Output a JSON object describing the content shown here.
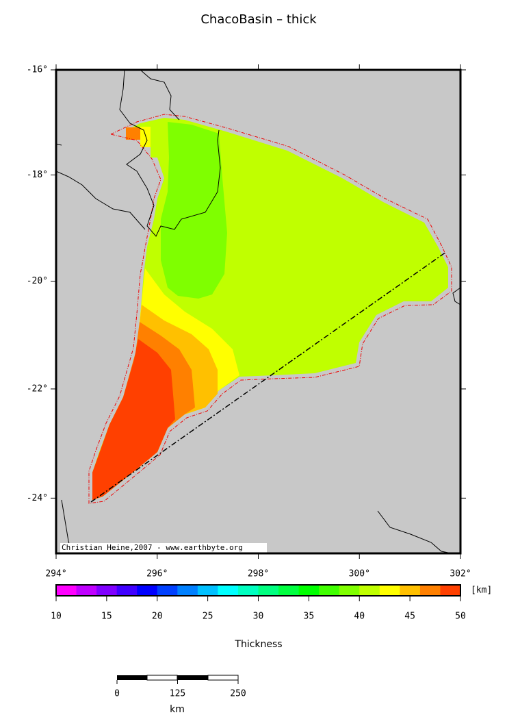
{
  "title": "ChacoBasin – thick",
  "map": {
    "lat_ticks": [
      {
        "value": -16,
        "label": "-16°"
      },
      {
        "value": -18,
        "label": "-18°"
      },
      {
        "value": -20,
        "label": "-20°"
      },
      {
        "value": -22,
        "label": "-22°"
      },
      {
        "value": -24,
        "label": "-24°"
      }
    ],
    "lat_range": [
      -16,
      -25
    ],
    "lon_ticks": [
      {
        "value": 294,
        "label": "294°"
      },
      {
        "value": 296,
        "label": "296°"
      },
      {
        "value": 298,
        "label": "298°"
      },
      {
        "value": 300,
        "label": "300°"
      },
      {
        "value": 302,
        "label": "302°"
      }
    ],
    "lon_range": [
      294,
      302
    ],
    "credit": "Christian Heine,2007 - www.earthbyte.org"
  },
  "colorbar": {
    "range": [
      10,
      50
    ],
    "ticks": [
      10,
      15,
      20,
      25,
      30,
      35,
      40,
      45,
      50
    ],
    "unit": "[km]",
    "label": "Thickness",
    "colors": [
      "#ff00ff",
      "#c000ff",
      "#8000ff",
      "#4000ff",
      "#0000ff",
      "#0040ff",
      "#0080ff",
      "#00c0ff",
      "#00ffff",
      "#00ffc0",
      "#00ff80",
      "#00ff40",
      "#00ff00",
      "#40ff00",
      "#80ff00",
      "#c0ff00",
      "#ffff00",
      "#ffc000",
      "#ff8000",
      "#ff4000"
    ]
  },
  "scale_bar": {
    "ticks": [
      0,
      125,
      250
    ],
    "unit": "km"
  }
}
